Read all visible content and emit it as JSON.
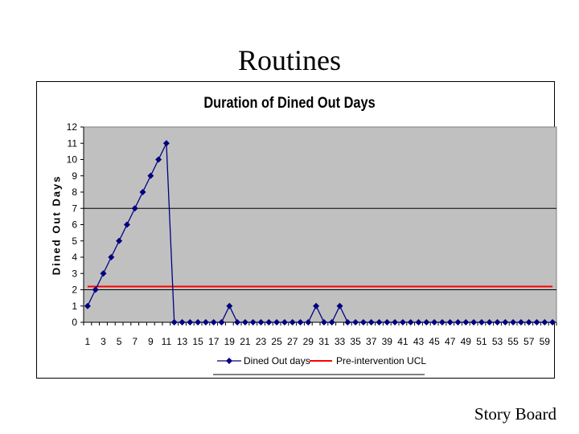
{
  "slide": {
    "title": "Routines",
    "footer": "Story Board"
  },
  "chart_data": {
    "type": "line",
    "title": "Duration of Dined Out Days",
    "xlabel": "",
    "ylabel": "Dined Out Days",
    "ylim": [
      0,
      12
    ],
    "yticks": [
      0,
      1,
      2,
      3,
      4,
      5,
      6,
      7,
      8,
      9,
      10,
      11,
      12
    ],
    "x_tick_labels": [
      "1",
      "3",
      "5",
      "7",
      "9",
      "11",
      "13",
      "15",
      "17",
      "19",
      "21",
      "23",
      "25",
      "27",
      "29",
      "31",
      "33",
      "35",
      "37",
      "39",
      "41",
      "43",
      "45",
      "47",
      "49",
      "51",
      "53",
      "55",
      "57",
      "59"
    ],
    "x": [
      1,
      2,
      3,
      4,
      5,
      6,
      7,
      8,
      9,
      10,
      11,
      12,
      13,
      14,
      15,
      16,
      17,
      18,
      19,
      20,
      21,
      22,
      23,
      24,
      25,
      26,
      27,
      28,
      29,
      30,
      31,
      32,
      33,
      34,
      35,
      36,
      37,
      38,
      39,
      40,
      41,
      42,
      43,
      44,
      45,
      46,
      47,
      48,
      49,
      50,
      51,
      52,
      53,
      54,
      55,
      56,
      57,
      58,
      59,
      60
    ],
    "series": [
      {
        "name": "Dined Out days",
        "color": "#000080",
        "marker": "diamond",
        "values": [
          1,
          2,
          3,
          4,
          5,
          6,
          7,
          8,
          9,
          10,
          11,
          0,
          0,
          0,
          0,
          0,
          0,
          0,
          1,
          0,
          0,
          0,
          0,
          0,
          0,
          0,
          0,
          0,
          0,
          1,
          0,
          0,
          1,
          0,
          0,
          0,
          0,
          0,
          0,
          0,
          0,
          0,
          0,
          0,
          0,
          0,
          0,
          0,
          0,
          0,
          0,
          0,
          0,
          0,
          0,
          0,
          0,
          0,
          0,
          0
        ]
      },
      {
        "name": "Pre-intervention UCL",
        "color": "#ff0000",
        "marker": "none",
        "constant": 2.2
      }
    ],
    "reference_lines": [
      2,
      7
    ],
    "grid": false,
    "plot_background": "#c0c0c0",
    "legend_position": "bottom"
  }
}
